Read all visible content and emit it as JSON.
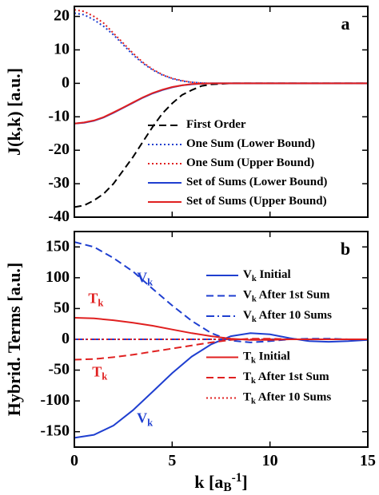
{
  "chart_data": [
    {
      "type": "line",
      "panel_label": "a",
      "ylabel": "J(k,k) [a.u.]",
      "x": [
        0,
        0.5,
        1,
        1.5,
        2,
        2.5,
        3,
        3.5,
        4,
        4.5,
        5,
        5.5,
        6,
        6.5,
        7,
        8,
        9,
        10,
        11,
        12,
        13,
        14,
        15
      ],
      "xlim": [
        0,
        15
      ],
      "xticks": [
        0,
        5,
        10,
        15
      ],
      "ylim": [
        -40,
        23
      ],
      "yticks": [
        -40,
        -30,
        -20,
        -10,
        0,
        10,
        20
      ],
      "series": [
        {
          "name": "First Order",
          "color": "#000000",
          "dash": "dashed",
          "values": [
            -37,
            -36.5,
            -35,
            -33,
            -30,
            -26,
            -22,
            -17.5,
            -13,
            -9,
            -6,
            -3.5,
            -2,
            -0.8,
            -0.3,
            0,
            0,
            0,
            0,
            0,
            0,
            0,
            0
          ]
        },
        {
          "name": "One Sum (Lower Bound)",
          "color": "#1f3fd0",
          "dash": "dotted",
          "values": [
            21,
            20.5,
            19,
            17,
            14.5,
            11.5,
            8.5,
            6,
            4,
            2.5,
            1.4,
            0.7,
            0.3,
            0.1,
            0,
            0,
            0,
            0,
            0,
            0,
            0,
            0,
            0
          ]
        },
        {
          "name": "One Sum (Upper Bound)",
          "color": "#e02020",
          "dash": "dotted",
          "values": [
            22,
            21.5,
            20,
            18,
            15,
            12,
            9,
            6.3,
            4.2,
            2.6,
            1.5,
            0.8,
            0.3,
            0.1,
            0,
            0,
            0,
            0,
            0,
            0,
            0,
            0,
            0
          ]
        },
        {
          "name": "Set of Sums (Lower Bound)",
          "color": "#1f3fd0",
          "dash": "solid",
          "values": [
            -12,
            -11.8,
            -11.2,
            -10.2,
            -8.8,
            -7.3,
            -5.8,
            -4.3,
            -3,
            -2,
            -1.2,
            -0.6,
            -0.3,
            -0.1,
            0,
            0,
            0,
            0,
            0,
            0,
            0,
            0,
            0
          ]
        },
        {
          "name": "Set of Sums (Upper Bound)",
          "color": "#e02020",
          "dash": "solid",
          "values": [
            -12,
            -11.7,
            -11.1,
            -10.1,
            -8.7,
            -7.2,
            -5.7,
            -4.2,
            -2.9,
            -1.9,
            -1.1,
            -0.6,
            -0.2,
            -0.1,
            0,
            0,
            0,
            0,
            0,
            0,
            0,
            0,
            0
          ]
        }
      ]
    },
    {
      "type": "line",
      "panel_label": "b",
      "ylabel": "Hybrid. Terms [a.u.]",
      "xlabel": "k [aB-1]",
      "x": [
        0,
        1,
        2,
        3,
        4,
        5,
        6,
        7,
        8,
        9,
        10,
        11,
        12,
        13,
        14,
        15
      ],
      "xlim": [
        0,
        15
      ],
      "xticks": [
        0,
        5,
        10,
        15
      ],
      "ylim": [
        -175,
        175
      ],
      "yticks": [
        -150,
        -100,
        -50,
        0,
        50,
        100,
        150
      ],
      "series": [
        {
          "name": "Vk Initial",
          "color": "#1f3fd0",
          "dash": "solid",
          "values": [
            -160,
            -155,
            -140,
            -115,
            -85,
            -55,
            -28,
            -8,
            5,
            10,
            8,
            2,
            -3,
            -4,
            -3,
            -1
          ]
        },
        {
          "name": "Vk After 1st Sum",
          "color": "#1f3fd0",
          "dash": "dashed",
          "values": [
            158,
            150,
            132,
            110,
            82,
            55,
            30,
            10,
            -2,
            -5,
            -3,
            0,
            1,
            1,
            0,
            0
          ]
        },
        {
          "name": "Vk After 10 Sums",
          "color": "#1f3fd0",
          "dash": "dashdot",
          "values": [
            0,
            0,
            0,
            0,
            0,
            0,
            0,
            0,
            0,
            0,
            0,
            0,
            0,
            0,
            0,
            0
          ]
        },
        {
          "name": "Tk Initial",
          "color": "#e02020",
          "dash": "solid",
          "values": [
            35,
            34,
            31,
            27,
            22,
            16,
            10,
            5,
            1,
            -1,
            -1,
            0,
            0,
            0,
            0,
            0
          ]
        },
        {
          "name": "Tk After 1st Sum",
          "color": "#e02020",
          "dash": "dashed",
          "values": [
            -33,
            -32,
            -29,
            -25,
            -20,
            -15,
            -10,
            -5,
            -1,
            1,
            1,
            0,
            0,
            0,
            0,
            0
          ]
        },
        {
          "name": "Tk After 10 Sums",
          "color": "#e02020",
          "dash": "dotted",
          "values": [
            0,
            0,
            0,
            0,
            0,
            0,
            0,
            0,
            0,
            0,
            0,
            0,
            0,
            0,
            0,
            0
          ]
        }
      ],
      "annotations": [
        {
          "text": "Vk",
          "x": 3.6,
          "y": 98,
          "color": "#1f3fd0"
        },
        {
          "text": "Vk",
          "x": 3.6,
          "y": -130,
          "color": "#1f3fd0"
        },
        {
          "text": "Tk",
          "x": 1.1,
          "y": 64,
          "color": "#e02020"
        },
        {
          "text": "Tk",
          "x": 1.3,
          "y": -55,
          "color": "#e02020"
        }
      ]
    }
  ]
}
